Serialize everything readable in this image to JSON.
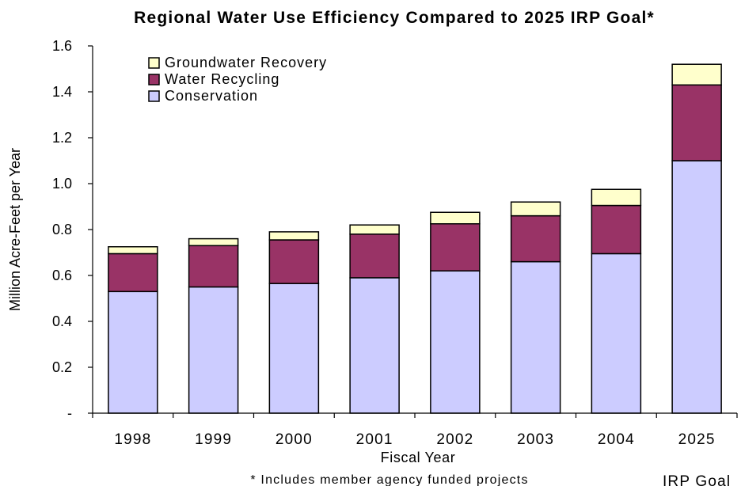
{
  "chart_data": {
    "type": "bar",
    "stacked": true,
    "title": "Regional Water Use Efficiency Compared to 2025 IRP Goal*",
    "xlabel": "Fiscal Year",
    "ylabel": "Million Acre-Feet per Year",
    "categories": [
      "1998",
      "1999",
      "2000",
      "2001",
      "2002",
      "2003",
      "2004",
      "2025"
    ],
    "category_sublabels": [
      "",
      "",
      "",
      "",
      "",
      "",
      "",
      "IRP Goal"
    ],
    "ylim": [
      0,
      1.6
    ],
    "yticks": [
      0,
      0.2,
      0.4,
      0.6,
      0.8,
      1.0,
      1.2,
      1.4,
      1.6
    ],
    "ytick_labels": [
      "-",
      "0.2",
      "0.4",
      "0.6",
      "0.8",
      "1.0",
      "1.2",
      "1.4",
      "1.6"
    ],
    "grid": false,
    "legend_position": "top-left",
    "series": [
      {
        "name": "Conservation",
        "color": "#ccccff",
        "values": [
          0.53,
          0.55,
          0.565,
          0.59,
          0.62,
          0.66,
          0.695,
          1.1
        ]
      },
      {
        "name": "Water Recycling",
        "color": "#993366",
        "values": [
          0.165,
          0.18,
          0.19,
          0.19,
          0.205,
          0.2,
          0.21,
          0.33
        ]
      },
      {
        "name": "Groundwater Recovery",
        "color": "#ffffcc",
        "values": [
          0.03,
          0.03,
          0.035,
          0.04,
          0.05,
          0.06,
          0.07,
          0.09
        ]
      }
    ],
    "legend_order": [
      "Groundwater Recovery",
      "Water Recycling",
      "Conservation"
    ],
    "footnote": "* Includes member agency funded projects"
  }
}
